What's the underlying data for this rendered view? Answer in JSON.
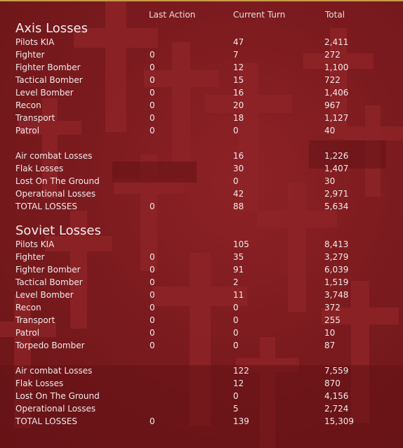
{
  "headers": {
    "last_action": "Last Action",
    "current_turn": "Current Turn",
    "total": "Total"
  },
  "axis": {
    "title": "Axis Losses",
    "rows": [
      {
        "label": "Pilots KIA",
        "last": "",
        "current": "47",
        "total": "2,411"
      },
      {
        "label": "Fighter",
        "last": "0",
        "current": "7",
        "total": "272"
      },
      {
        "label": "Fighter Bomber",
        "last": "0",
        "current": "12",
        "total": "1,100"
      },
      {
        "label": "Tactical Bomber",
        "last": "0",
        "current": "15",
        "total": "722"
      },
      {
        "label": "Level Bomber",
        "last": "0",
        "current": "16",
        "total": "1,406"
      },
      {
        "label": "Recon",
        "last": "0",
        "current": "20",
        "total": "967"
      },
      {
        "label": "Transport",
        "last": "0",
        "current": "18",
        "total": "1,127"
      },
      {
        "label": "Patrol",
        "last": "0",
        "current": "0",
        "total": "40"
      }
    ],
    "summary": [
      {
        "label": "Air combat Losses",
        "last": "",
        "current": "16",
        "total": "1,226"
      },
      {
        "label": "Flak Losses",
        "last": "",
        "current": "30",
        "total": "1,407"
      },
      {
        "label": "Lost On The Ground",
        "last": "",
        "current": "0",
        "total": "30"
      },
      {
        "label": "Operational Losses",
        "last": "",
        "current": "42",
        "total": "2,971"
      },
      {
        "label": "TOTAL LOSSES",
        "last": "0",
        "current": "88",
        "total": "5,634"
      }
    ]
  },
  "soviet": {
    "title": "Soviet Losses",
    "rows": [
      {
        "label": "Pilots KIA",
        "last": "",
        "current": "105",
        "total": "8,413"
      },
      {
        "label": "Fighter",
        "last": "0",
        "current": "35",
        "total": "3,279"
      },
      {
        "label": "Fighter Bomber",
        "last": "0",
        "current": "91",
        "total": "6,039"
      },
      {
        "label": "Tactical Bomber",
        "last": "0",
        "current": "2",
        "total": "1,519"
      },
      {
        "label": "Level Bomber",
        "last": "0",
        "current": "11",
        "total": "3,748"
      },
      {
        "label": "Recon",
        "last": "0",
        "current": "0",
        "total": "372"
      },
      {
        "label": "Transport",
        "last": "0",
        "current": "0",
        "total": "255"
      },
      {
        "label": "Patrol",
        "last": "0",
        "current": "0",
        "total": "10"
      },
      {
        "label": "Torpedo Bomber",
        "last": "0",
        "current": "0",
        "total": "87"
      }
    ],
    "summary": [
      {
        "label": "Air combat Losses",
        "last": "",
        "current": "122",
        "total": "7,559"
      },
      {
        "label": "Flak Losses",
        "last": "",
        "current": "12",
        "total": "870"
      },
      {
        "label": "Lost On The Ground",
        "last": "",
        "current": "0",
        "total": "4,156"
      },
      {
        "label": "Operational Losses",
        "last": "",
        "current": "5",
        "total": "2,724"
      },
      {
        "label": "TOTAL LOSSES",
        "last": "0",
        "current": "139",
        "total": "15,309"
      }
    ]
  },
  "colors": {
    "background": "#7a1a1d",
    "cross": "#8f2428",
    "accent_line": "#c89a4a",
    "text": "#f0eaea"
  }
}
